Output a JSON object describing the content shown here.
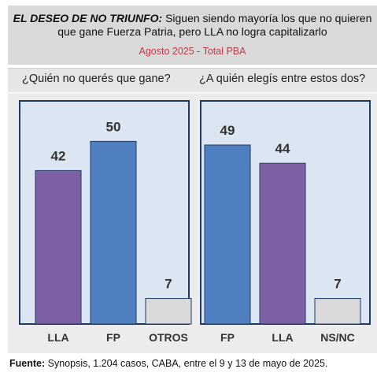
{
  "header": {
    "title_bold": "EL DESEO DE NO TRIUNFO:",
    "title_rest": "Siguen siendo mayoría los que no quieren que gane Fuerza Patria, pero LLA no logra capitalizarlo",
    "subtitle": "Agosto 2025 - Total PBA"
  },
  "questions": {
    "left": "¿Quién no querés que gane?",
    "right": "¿A quién elegís entre estos dos?"
  },
  "colors": {
    "LLA": "#7e60a4",
    "FP": "#4f7fc0",
    "OTROS": "#d9d9d9",
    "NS/NC": "#d9d9d9"
  },
  "chart_data": [
    {
      "type": "bar",
      "title": "¿Quién no querés que gane?",
      "categories": [
        "LLA",
        "FP",
        "OTROS"
      ],
      "values": [
        42,
        50,
        7
      ],
      "ylim": [
        0,
        60
      ]
    },
    {
      "type": "bar",
      "title": "¿A quién elegís entre estos dos?",
      "categories": [
        "FP",
        "LLA",
        "NS/NC"
      ],
      "values": [
        49,
        44,
        7
      ],
      "ylim": [
        0,
        60
      ]
    }
  ],
  "footer": {
    "label": "Fuente:",
    "text": "Synopsis, 1.204 casos, CABA, entre el 9 y 13 de mayo de 2025."
  }
}
